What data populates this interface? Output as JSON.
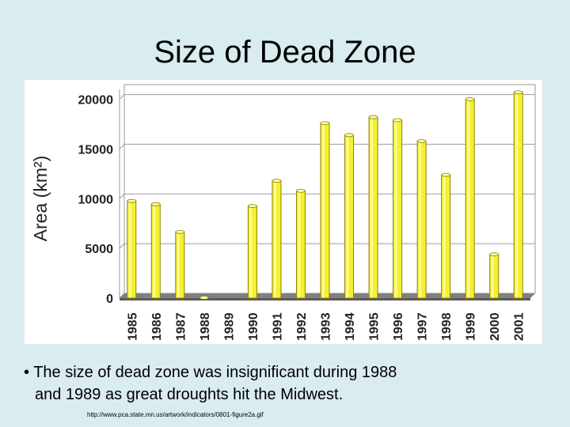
{
  "slide": {
    "title": "Size of Dead Zone",
    "bullet_line1": "• The size of dead zone was insignificant during 1988",
    "bullet_line2": "and 1989 as great droughts hit the Midwest.",
    "source": "http://www.pca.state.mn.us/artwork/indicators/0801-figure2a.gif"
  },
  "chart_data": {
    "type": "bar",
    "title": "",
    "xlabel": "",
    "ylabel": "Area (km²)",
    "categories": [
      "1985",
      "1986",
      "1987",
      "1988",
      "1989",
      "1990",
      "1991",
      "1992",
      "1993",
      "1994",
      "1995",
      "1996",
      "1997",
      "1998",
      "1999",
      "2000",
      "2001"
    ],
    "values": [
      9770,
      9440,
      6660,
      40,
      0,
      9260,
      11800,
      10800,
      17600,
      16400,
      18200,
      17900,
      15800,
      12400,
      20000,
      4400,
      20700
    ],
    "yticks": [
      "0",
      "5000",
      "10000",
      "15000",
      "20000"
    ],
    "ylim": [
      0,
      21000
    ],
    "colors": {
      "bar": "#f5f030",
      "bar_edge": "#8a8400",
      "bar_top": "#fffdb0"
    }
  }
}
